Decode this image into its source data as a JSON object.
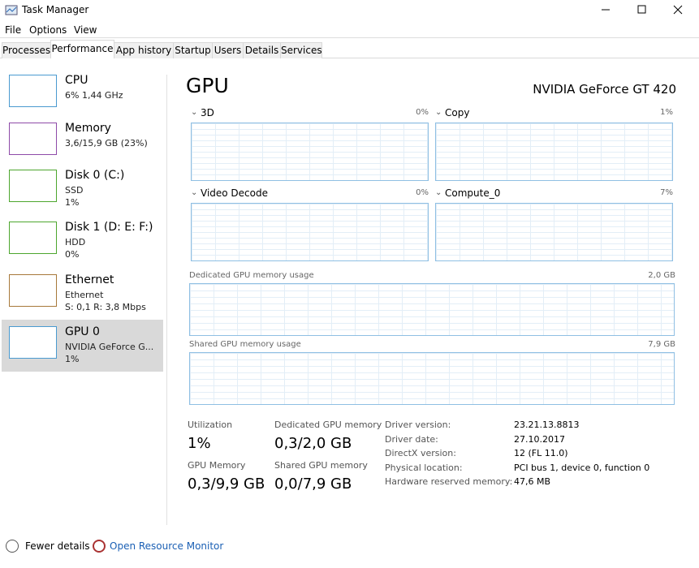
{
  "window": {
    "title": "Task Manager"
  },
  "menu": [
    "File",
    "Options",
    "View"
  ],
  "tabs": [
    "Processes",
    "Performance",
    "App history",
    "Startup",
    "Users",
    "Details",
    "Services"
  ],
  "sidebar": [
    {
      "name": "CPU",
      "lines": [
        "6% 1,44 GHz"
      ]
    },
    {
      "name": "Memory",
      "lines": [
        "3,6/15,9 GB (23%)"
      ]
    },
    {
      "name": "Disk 0 (C:)",
      "lines": [
        "SSD",
        "1%"
      ]
    },
    {
      "name": "Disk 1 (D: E: F:)",
      "lines": [
        "HDD",
        "0%"
      ]
    },
    {
      "name": "Ethernet",
      "lines": [
        "Ethernet",
        "S: 0,1 R: 3,8 Mbps"
      ]
    },
    {
      "name": "GPU 0",
      "lines": [
        "NVIDIA GeForce G...",
        "1%"
      ]
    }
  ],
  "main": {
    "title": "GPU",
    "device": "NVIDIA GeForce GT 420",
    "engines": [
      {
        "label": "3D",
        "value": "0%"
      },
      {
        "label": "Copy",
        "value": "1%"
      },
      {
        "label": "Video Decode",
        "value": "0%"
      },
      {
        "label": "Compute_0",
        "value": "7%"
      }
    ],
    "memory_graphs": [
      {
        "label": "Dedicated GPU memory usage",
        "value": "2,0 GB"
      },
      {
        "label": "Shared GPU memory usage",
        "value": "7,9 GB"
      }
    ],
    "stats": [
      {
        "label": "Utilization",
        "value": "1%"
      },
      {
        "label": "Dedicated GPU memory",
        "value": "0,3/2,0 GB"
      },
      {
        "label": "GPU Memory",
        "value": "0,3/9,9 GB"
      },
      {
        "label": "Shared GPU memory",
        "value": "0,0/7,9 GB"
      }
    ],
    "details": [
      [
        "Driver version:",
        "23.21.13.8813"
      ],
      [
        "Driver date:",
        "27.10.2017"
      ],
      [
        "DirectX version:",
        "12 (FL 11.0)"
      ],
      [
        "Physical location:",
        "PCI bus 1, device 0, function 0"
      ],
      [
        "Hardware reserved memory:",
        "47,6 MB"
      ]
    ]
  },
  "footer": {
    "fewer": "Fewer details",
    "monitor": "Open Resource Monitor"
  }
}
